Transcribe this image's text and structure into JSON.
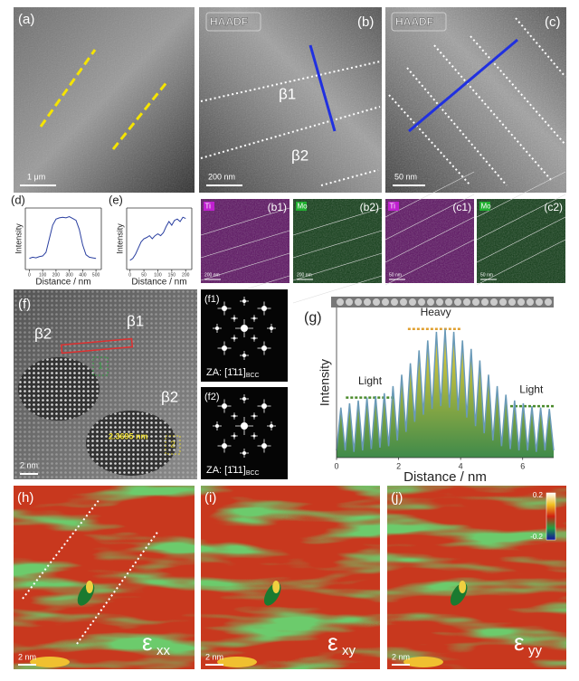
{
  "images": {
    "a": {
      "label": "(a)",
      "scale_bar": "1 μm"
    },
    "b": {
      "label": "(b)",
      "badge": "HAADF",
      "phases": [
        "β1",
        "β2"
      ],
      "scale_bar": "200 nm"
    },
    "c": {
      "label": "(c)",
      "badge": "HAADF",
      "scale_bar": "50 nm"
    },
    "eds": [
      {
        "label": "(b1)",
        "element": "Ti",
        "scale_bar": "200 nm"
      },
      {
        "label": "(b2)",
        "element": "Mo",
        "scale_bar": "200 nm"
      },
      {
        "label": "(c1)",
        "element": "Ti",
        "scale_bar": "50 nm"
      },
      {
        "label": "(c2)",
        "element": "Mo",
        "scale_bar": "50 nm"
      }
    ],
    "f": {
      "label": "(f)",
      "phases": [
        "β2",
        "β1",
        "β2"
      ],
      "measure": "2.3695 nm",
      "boxes": [
        "1",
        "2"
      ],
      "scale_bar": "2 nm"
    },
    "fft": [
      {
        "label": "(f1)",
        "zone_axis": "ZA: [1̄11]",
        "subscript": "BCC"
      },
      {
        "label": "(f2)",
        "zone_axis": "ZA: [1̄11]",
        "subscript": "BCC"
      }
    ],
    "strain": [
      {
        "label": "(h)",
        "symbol": "ε",
        "subscript": "xx",
        "scale_bar": "2 nm"
      },
      {
        "label": "(i)",
        "symbol": "ε",
        "subscript": "xy",
        "scale_bar": "2 nm"
      },
      {
        "label": "(j)",
        "symbol": "ε",
        "subscript": "yy",
        "scale_bar": "2 nm",
        "colorbar": [
          "0.2",
          "-0.2"
        ]
      }
    ]
  },
  "chart_data": [
    {
      "type": "line",
      "label": "(d)",
      "x_label": "Distance / nm",
      "y_label": "Intensity",
      "color": "#2a3fa0",
      "x": [
        0,
        25,
        50,
        75,
        100,
        125,
        150,
        175,
        200,
        225,
        250,
        275,
        300,
        325,
        350,
        375,
        400,
        425,
        450,
        475,
        500
      ],
      "values": [
        0.18,
        0.2,
        0.19,
        0.21,
        0.22,
        0.28,
        0.5,
        0.72,
        0.82,
        0.84,
        0.85,
        0.84,
        0.86,
        0.83,
        0.8,
        0.65,
        0.4,
        0.24,
        0.2,
        0.19,
        0.18
      ],
      "xlim": [
        -30,
        540
      ],
      "ylim": [
        0,
        1
      ],
      "xticks": [
        0,
        100,
        200,
        300,
        400,
        500
      ]
    },
    {
      "type": "line",
      "label": "(e)",
      "x_label": "Distance / nm",
      "y_label": "Intensity",
      "color": "#2a3fa0",
      "x": [
        0,
        10,
        20,
        30,
        40,
        50,
        60,
        70,
        80,
        90,
        100,
        110,
        120,
        130,
        140,
        150,
        160,
        170,
        180,
        190,
        200
      ],
      "values": [
        0.15,
        0.18,
        0.25,
        0.35,
        0.45,
        0.5,
        0.52,
        0.55,
        0.5,
        0.55,
        0.58,
        0.55,
        0.6,
        0.7,
        0.78,
        0.72,
        0.8,
        0.82,
        0.78,
        0.85,
        0.83
      ],
      "xlim": [
        -12,
        222
      ],
      "ylim": [
        0,
        1
      ],
      "xticks": [
        0,
        50,
        100,
        150,
        200
      ]
    },
    {
      "type": "area",
      "label": "(g)",
      "x_label": "Distance / nm",
      "y_label": "Intensity",
      "color": "#6a9ab8",
      "x": [
        0,
        0.14,
        0.28,
        0.42,
        0.56,
        0.7,
        0.84,
        0.98,
        1.12,
        1.26,
        1.4,
        1.54,
        1.68,
        1.82,
        1.96,
        2.1,
        2.24,
        2.38,
        2.52,
        2.66,
        2.8,
        2.94,
        3.08,
        3.22,
        3.36,
        3.5,
        3.64,
        3.78,
        3.92,
        4.06,
        4.2,
        4.34,
        4.48,
        4.62,
        4.76,
        4.9,
        5.04,
        5.18,
        5.32,
        5.46,
        5.6,
        5.74,
        5.88,
        6.02,
        6.16,
        6.3,
        6.44,
        6.58,
        6.72,
        6.86,
        7
      ],
      "values": [
        0.05,
        0.35,
        0.05,
        0.38,
        0.04,
        0.4,
        0.05,
        0.42,
        0.06,
        0.43,
        0.07,
        0.45,
        0.08,
        0.5,
        0.12,
        0.58,
        0.18,
        0.66,
        0.25,
        0.75,
        0.3,
        0.82,
        0.34,
        0.88,
        0.36,
        0.9,
        0.35,
        0.88,
        0.33,
        0.82,
        0.28,
        0.76,
        0.22,
        0.68,
        0.17,
        0.58,
        0.12,
        0.5,
        0.08,
        0.44,
        0.06,
        0.4,
        0.05,
        0.38,
        0.05,
        0.36,
        0.04,
        0.35,
        0.05,
        0.34,
        0.05
      ],
      "xlim": [
        0,
        7
      ],
      "ylim": [
        0,
        1.05
      ],
      "xticks": [
        0,
        2,
        4,
        6
      ],
      "reference_lines": [
        {
          "label": "Light",
          "value": 0.42,
          "color": "#4a8a2a"
        },
        {
          "label": "Heavy",
          "value": 0.9,
          "color": "#e0a030"
        },
        {
          "label": "Light",
          "value": 0.36,
          "color": "#4a8a2a"
        }
      ]
    }
  ]
}
